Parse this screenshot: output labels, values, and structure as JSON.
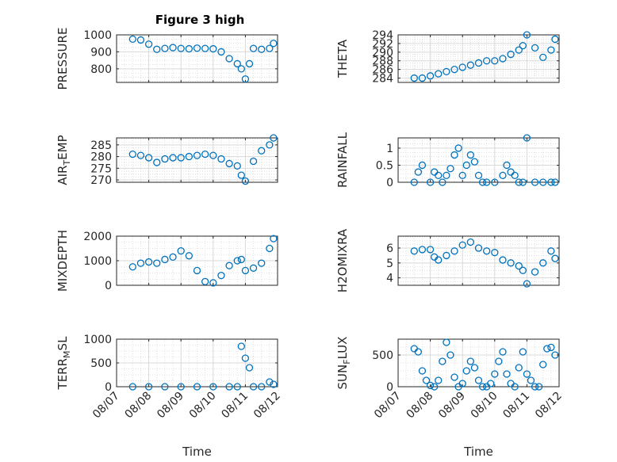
{
  "figure": {
    "title": "Figure 3 high"
  },
  "colors": {
    "marker": "#0072BD",
    "axis": "#262626",
    "grid": "#d9d9d9"
  },
  "chart_data": [
    {
      "type": "scatter",
      "marker": "circle",
      "grid": true,
      "title": "Figure 3 high",
      "ylabel": "PRESSURE",
      "xlabel": "",
      "xlim": [
        "08/07",
        "08/12"
      ],
      "ylim": [
        720,
        1000
      ],
      "yticks": [
        800,
        900,
        1000
      ],
      "xtick_labels": [],
      "ytick_labels": [
        "800",
        "900",
        "1000"
      ],
      "x": [
        "08/07 12:00",
        "08/07 18:00",
        "08/08 00:00",
        "08/08 06:00",
        "08/08 12:00",
        "08/08 18:00",
        "08/09 00:00",
        "08/09 06:00",
        "08/09 12:00",
        "08/09 18:00",
        "08/10 00:00",
        "08/10 06:00",
        "08/10 12:00",
        "08/10 18:00",
        "08/10 21:00",
        "08/11 00:00",
        "08/11 03:00",
        "08/11 06:00",
        "08/11 12:00",
        "08/11 18:00",
        "08/11 21:00"
      ],
      "y": [
        975,
        970,
        945,
        915,
        920,
        925,
        920,
        918,
        922,
        920,
        918,
        900,
        860,
        830,
        800,
        740,
        830,
        920,
        915,
        920,
        950
      ]
    },
    {
      "type": "scatter",
      "marker": "circle",
      "grid": true,
      "title": "",
      "ylabel": "THETA",
      "xlabel": "",
      "xlim": [
        "08/07",
        "08/12"
      ],
      "ylim": [
        283,
        294
      ],
      "yticks": [
        284,
        286,
        288,
        290,
        292,
        294
      ],
      "xtick_labels": [],
      "ytick_labels": [
        "284",
        "286",
        "288",
        "290",
        "292",
        "294"
      ],
      "x": [
        "08/07 12:00",
        "08/07 18:00",
        "08/08 00:00",
        "08/08 06:00",
        "08/08 12:00",
        "08/08 18:00",
        "08/09 00:00",
        "08/09 06:00",
        "08/09 12:00",
        "08/09 18:00",
        "08/10 00:00",
        "08/10 06:00",
        "08/10 12:00",
        "08/10 18:00",
        "08/10 21:00",
        "08/11 00:00",
        "08/11 06:00",
        "08/11 12:00",
        "08/11 18:00",
        "08/11 21:00"
      ],
      "y": [
        284,
        284,
        284.5,
        285,
        285.5,
        286,
        286.5,
        287,
        287.5,
        288,
        288,
        288.5,
        289.5,
        290.5,
        291.5,
        294,
        291,
        288.8,
        290.5,
        293
      ]
    },
    {
      "type": "scatter",
      "marker": "circle",
      "grid": true,
      "title": "",
      "ylabel": "AIR_TEMP",
      "xlabel": "",
      "xlim": [
        "08/07",
        "08/12"
      ],
      "ylim": [
        269,
        288
      ],
      "yticks": [
        270,
        275,
        280,
        285
      ],
      "xtick_labels": [],
      "ytick_labels": [
        "270",
        "275",
        "280",
        "285"
      ],
      "x": [
        "08/07 12:00",
        "08/07 18:00",
        "08/08 00:00",
        "08/08 06:00",
        "08/08 12:00",
        "08/08 18:00",
        "08/09 00:00",
        "08/09 06:00",
        "08/09 12:00",
        "08/09 18:00",
        "08/10 00:00",
        "08/10 06:00",
        "08/10 12:00",
        "08/10 18:00",
        "08/10 21:00",
        "08/11 00:00",
        "08/11 06:00",
        "08/11 12:00",
        "08/11 18:00",
        "08/11 21:00"
      ],
      "y": [
        281,
        280.5,
        279.5,
        277.5,
        279,
        279.5,
        279.5,
        280,
        280.5,
        281,
        280.5,
        279,
        277,
        276,
        272,
        269.5,
        278,
        282.5,
        285,
        288
      ]
    },
    {
      "type": "scatter",
      "marker": "circle",
      "grid": true,
      "title": "",
      "ylabel": "RAINFALL",
      "xlabel": "",
      "xlim": [
        "08/07",
        "08/12"
      ],
      "ylim": [
        0,
        1.3
      ],
      "yticks": [
        0,
        0.5,
        1
      ],
      "xtick_labels": [],
      "ytick_labels": [
        "0",
        "0.5",
        "1"
      ],
      "x": [
        "08/07 12:00",
        "08/07 15:00",
        "08/07 18:00",
        "08/08 00:00",
        "08/08 03:00",
        "08/08 06:00",
        "08/08 09:00",
        "08/08 12:00",
        "08/08 15:00",
        "08/08 18:00",
        "08/08 21:00",
        "08/09 00:00",
        "08/09 03:00",
        "08/09 06:00",
        "08/09 09:00",
        "08/09 12:00",
        "08/09 15:00",
        "08/09 18:00",
        "08/10 00:00",
        "08/10 06:00",
        "08/10 09:00",
        "08/10 12:00",
        "08/10 15:00",
        "08/10 18:00",
        "08/10 21:00",
        "08/11 00:00",
        "08/11 06:00",
        "08/11 12:00",
        "08/11 18:00",
        "08/11 21:00"
      ],
      "y": [
        0,
        0.3,
        0.5,
        0,
        0.3,
        0.2,
        0,
        0.2,
        0.4,
        0.8,
        1.0,
        0.2,
        0.5,
        0.8,
        0.6,
        0.2,
        0,
        0,
        0,
        0.2,
        0.5,
        0.3,
        0.2,
        0,
        0,
        1.3,
        0,
        0,
        0,
        0
      ]
    },
    {
      "type": "scatter",
      "marker": "circle",
      "grid": true,
      "title": "",
      "ylabel": "MIXDEPTH",
      "xlabel": "",
      "xlim": [
        "08/07",
        "08/12"
      ],
      "ylim": [
        0,
        2000
      ],
      "yticks": [
        0,
        1000,
        2000
      ],
      "xtick_labels": [],
      "ytick_labels": [
        "0",
        "1000",
        "2000"
      ],
      "x": [
        "08/07 12:00",
        "08/07 18:00",
        "08/08 00:00",
        "08/08 06:00",
        "08/08 12:00",
        "08/08 18:00",
        "08/09 00:00",
        "08/09 06:00",
        "08/09 12:00",
        "08/09 18:00",
        "08/10 00:00",
        "08/10 06:00",
        "08/10 12:00",
        "08/10 18:00",
        "08/10 21:00",
        "08/11 00:00",
        "08/11 06:00",
        "08/11 12:00",
        "08/11 18:00",
        "08/11 21:00"
      ],
      "y": [
        750,
        900,
        950,
        900,
        1050,
        1150,
        1400,
        1200,
        600,
        150,
        100,
        400,
        800,
        1000,
        1050,
        600,
        700,
        900,
        1500,
        1900
      ]
    },
    {
      "type": "scatter",
      "marker": "circle",
      "grid": true,
      "title": "",
      "ylabel": "H2OMIXRA",
      "xlabel": "",
      "xlim": [
        "08/07",
        "08/12"
      ],
      "ylim": [
        3.5,
        6.8
      ],
      "yticks": [
        4,
        5,
        6
      ],
      "xtick_labels": [],
      "ytick_labels": [
        "4",
        "5",
        "6"
      ],
      "x": [
        "08/07 12:00",
        "08/07 18:00",
        "08/08 00:00",
        "08/08 03:00",
        "08/08 06:00",
        "08/08 12:00",
        "08/08 18:00",
        "08/09 00:00",
        "08/09 06:00",
        "08/09 12:00",
        "08/09 18:00",
        "08/10 00:00",
        "08/10 06:00",
        "08/10 12:00",
        "08/10 18:00",
        "08/10 21:00",
        "08/11 00:00",
        "08/11 06:00",
        "08/11 12:00",
        "08/11 18:00",
        "08/11 21:00"
      ],
      "y": [
        5.8,
        5.9,
        5.9,
        5.4,
        5.2,
        5.5,
        5.8,
        6.2,
        6.4,
        6.0,
        5.8,
        5.7,
        5.2,
        5.0,
        4.8,
        4.5,
        3.6,
        4.4,
        5.0,
        5.8,
        5.3
      ]
    },
    {
      "type": "scatter",
      "marker": "circle",
      "grid": true,
      "title": "",
      "ylabel": "TERR_MSL",
      "xlabel": "Time",
      "xlim": [
        "08/07",
        "08/12"
      ],
      "ylim": [
        0,
        1000
      ],
      "yticks": [
        0,
        500,
        1000
      ],
      "xtick_labels": [
        "08/07",
        "08/08",
        "08/09",
        "08/10",
        "08/11",
        "08/12"
      ],
      "ytick_labels": [
        "0",
        "500",
        "1000"
      ],
      "x": [
        "08/07 12:00",
        "08/08 00:00",
        "08/08 12:00",
        "08/09 00:00",
        "08/09 12:00",
        "08/10 00:00",
        "08/10 12:00",
        "08/10 18:00",
        "08/10 21:00",
        "08/11 00:00",
        "08/11 03:00",
        "08/11 06:00",
        "08/11 12:00",
        "08/11 18:00",
        "08/11 21:00"
      ],
      "y": [
        0,
        0,
        0,
        0,
        0,
        0,
        0,
        0,
        850,
        600,
        400,
        0,
        0,
        100,
        50
      ]
    },
    {
      "type": "scatter",
      "marker": "circle",
      "grid": true,
      "title": "",
      "ylabel": "SUN_FLUX",
      "xlabel": "Time",
      "xlim": [
        "08/07",
        "08/12"
      ],
      "ylim": [
        0,
        750
      ],
      "yticks": [
        0,
        500
      ],
      "xtick_labels": [
        "08/07",
        "08/08",
        "08/09",
        "08/10",
        "08/11",
        "08/12"
      ],
      "ytick_labels": [
        "0",
        "500"
      ],
      "x": [
        "08/07 12:00",
        "08/07 15:00",
        "08/07 18:00",
        "08/07 21:00",
        "08/08 00:00",
        "08/08 03:00",
        "08/08 06:00",
        "08/08 09:00",
        "08/08 12:00",
        "08/08 15:00",
        "08/08 18:00",
        "08/08 21:00",
        "08/09 00:00",
        "08/09 03:00",
        "08/09 06:00",
        "08/09 09:00",
        "08/09 12:00",
        "08/09 15:00",
        "08/09 18:00",
        "08/09 21:00",
        "08/10 00:00",
        "08/10 03:00",
        "08/10 06:00",
        "08/10 09:00",
        "08/10 12:00",
        "08/10 15:00",
        "08/10 18:00",
        "08/10 21:00",
        "08/11 00:00",
        "08/11 03:00",
        "08/11 06:00",
        "08/11 09:00",
        "08/11 12:00",
        "08/11 15:00",
        "08/11 18:00",
        "08/11 21:00"
      ],
      "y": [
        600,
        550,
        250,
        100,
        20,
        0,
        100,
        400,
        700,
        500,
        150,
        0,
        50,
        250,
        400,
        300,
        100,
        0,
        0,
        50,
        200,
        400,
        550,
        200,
        50,
        0,
        300,
        550,
        200,
        100,
        0,
        0,
        350,
        600,
        620,
        500
      ]
    }
  ]
}
